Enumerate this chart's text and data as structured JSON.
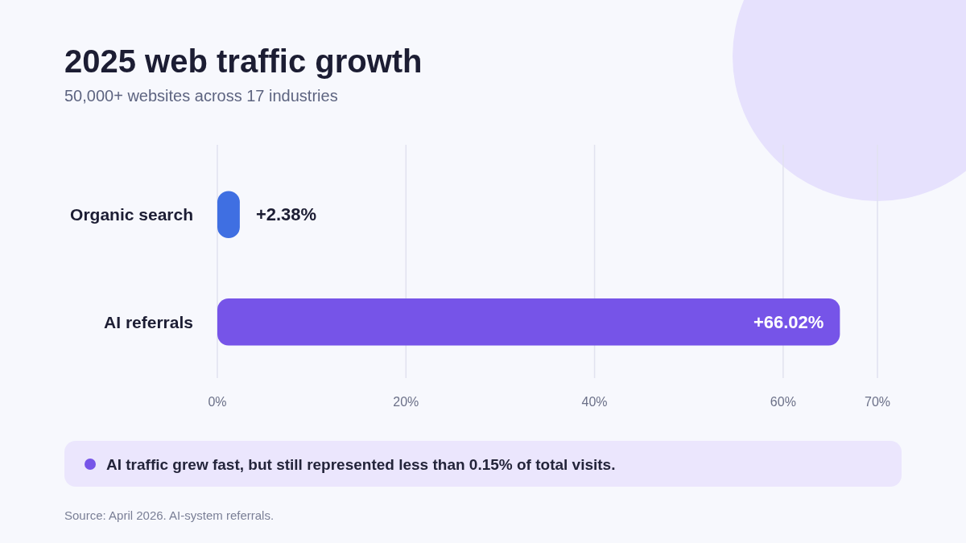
{
  "chart_data": {
    "type": "bar",
    "orientation": "horizontal",
    "title": "2025 web traffic growth",
    "subtitle": "50,000+ websites across 17 industries",
    "categories": [
      "Organic search",
      "AI referrals"
    ],
    "values": [
      2.38,
      66.02
    ],
    "colors": [
      "#3f6fe2",
      "#7654e8"
    ],
    "value_labels": [
      "+2.38%",
      "+66.02%"
    ],
    "xlim": [
      0,
      70
    ],
    "xticks": [
      {
        "value": 0,
        "label": "0%"
      },
      {
        "value": 20,
        "label": "20%"
      },
      {
        "value": 40,
        "label": "40%"
      },
      {
        "value": 60,
        "label": "60%"
      },
      {
        "value": 70,
        "label": "70%"
      }
    ],
    "grid": "x",
    "annotations": [
      "AI traffic grew fast, but still represented less than 0.15% of total visits.",
      "Source: April 2026. AI-system referrals."
    ]
  }
}
